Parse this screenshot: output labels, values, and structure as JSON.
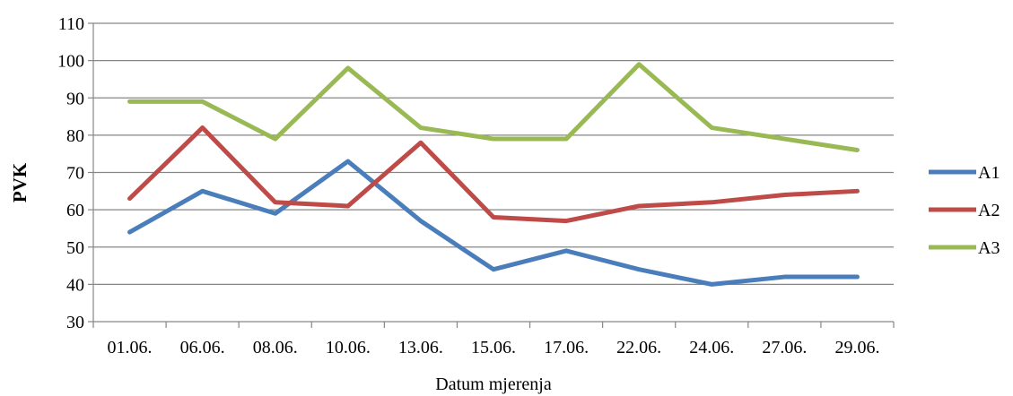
{
  "chart_data": {
    "type": "line",
    "title": "",
    "xlabel": "Datum mjerenja",
    "ylabel": "PVK",
    "ylim": [
      30,
      110
    ],
    "yticks": [
      30,
      40,
      50,
      60,
      70,
      80,
      90,
      100,
      110
    ],
    "grid": "horizontal",
    "legend_position": "right",
    "categories": [
      "01.06.",
      "06.06.",
      "08.06.",
      "10.06.",
      "13.06.",
      "15.06.",
      "17.06.",
      "22.06.",
      "24.06.",
      "27.06.",
      "29.06."
    ],
    "series": [
      {
        "name": "A1",
        "color": "#4a7ebb",
        "values": [
          54,
          65,
          59,
          73,
          57,
          44,
          49,
          44,
          40,
          42,
          42
        ]
      },
      {
        "name": "A2",
        "color": "#be4b48",
        "values": [
          63,
          82,
          62,
          61,
          78,
          58,
          57,
          61,
          62,
          64,
          65
        ]
      },
      {
        "name": "A3",
        "color": "#98b954",
        "values": [
          89,
          89,
          79,
          98,
          82,
          79,
          79,
          99,
          82,
          79,
          76
        ]
      }
    ]
  }
}
